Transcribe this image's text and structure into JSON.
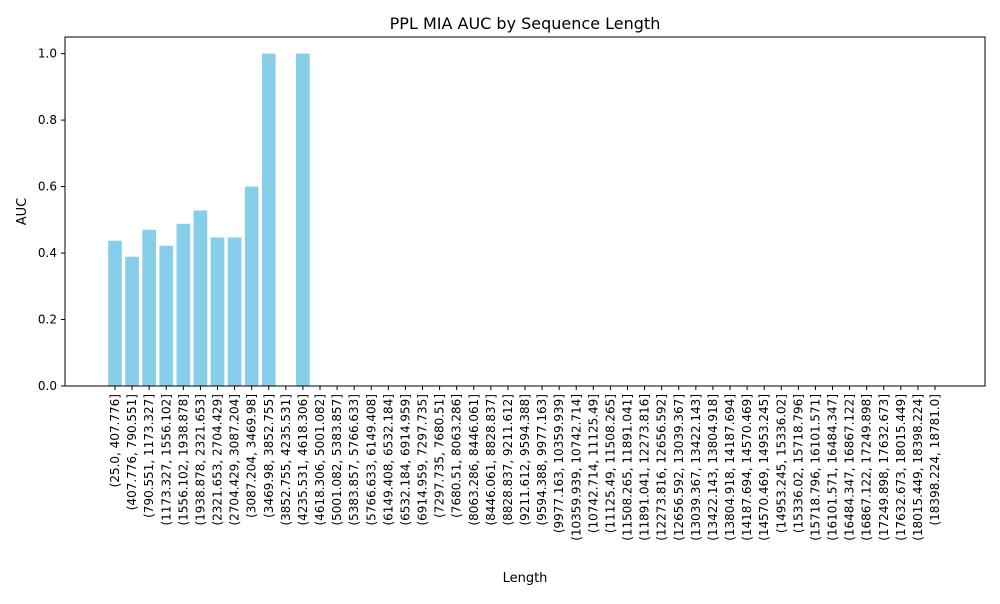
{
  "chart_data": {
    "type": "bar",
    "title": "PPL MIA AUC by Sequence Length",
    "xlabel": "Length",
    "ylabel": "AUC",
    "ylim": [
      0,
      1.05
    ],
    "yticks": [
      "0.0",
      "0.2",
      "0.4",
      "0.6",
      "0.8",
      "1.0"
    ],
    "bar_color": "#87ceeb",
    "grid": false,
    "legend": "none",
    "categories": [
      "(25.0, 407.776]",
      "(407.776, 790.551]",
      "(790.551, 1173.327]",
      "(1173.327, 1556.102]",
      "(1556.102, 1938.878]",
      "(1938.878, 2321.653]",
      "(2321.653, 2704.429]",
      "(2704.429, 3087.204]",
      "(3087.204, 3469.98]",
      "(3469.98, 3852.755]",
      "(3852.755, 4235.531]",
      "(4235.531, 4618.306]",
      "(4618.306, 5001.082]",
      "(5001.082, 5383.857]",
      "(5383.857, 5766.633]",
      "(5766.633, 6149.408]",
      "(6149.408, 6532.184]",
      "(6532.184, 6914.959]",
      "(6914.959, 7297.735]",
      "(7297.735, 7680.51]",
      "(7680.51, 8063.286]",
      "(8063.286, 8446.061]",
      "(8446.061, 8828.837]",
      "(8828.837, 9211.612]",
      "(9211.612, 9594.388]",
      "(9594.388, 9977.163]",
      "(9977.163, 10359.939]",
      "(10359.939, 10742.714]",
      "(10742.714, 11125.49]",
      "(11125.49, 11508.265]",
      "(11508.265, 11891.041]",
      "(11891.041, 12273.816]",
      "(12273.816, 12656.592]",
      "(12656.592, 13039.367]",
      "(13039.367, 13422.143]",
      "(13422.143, 13804.918]",
      "(13804.918, 14187.694]",
      "(14187.694, 14570.469]",
      "(14570.469, 14953.245]",
      "(14953.245, 15336.02]",
      "(15336.02, 15718.796]",
      "(15718.796, 16101.571]",
      "(16101.571, 16484.347]",
      "(16484.347, 16867.122]",
      "(16867.122, 17249.898]",
      "(17249.898, 17632.673]",
      "(17632.673, 18015.449]",
      "(18015.449, 18398.224]",
      "(18398.224, 18781.0]"
    ],
    "values": [
      0.437,
      0.389,
      0.47,
      0.422,
      0.488,
      0.528,
      0.447,
      0.447,
      0.6,
      1.0,
      null,
      1.0,
      null,
      null,
      null,
      null,
      null,
      null,
      null,
      null,
      null,
      null,
      null,
      null,
      null,
      null,
      null,
      null,
      null,
      null,
      null,
      null,
      null,
      null,
      null,
      null,
      null,
      null,
      null,
      null,
      null,
      null,
      null,
      null,
      null,
      null,
      null,
      null,
      null
    ]
  }
}
